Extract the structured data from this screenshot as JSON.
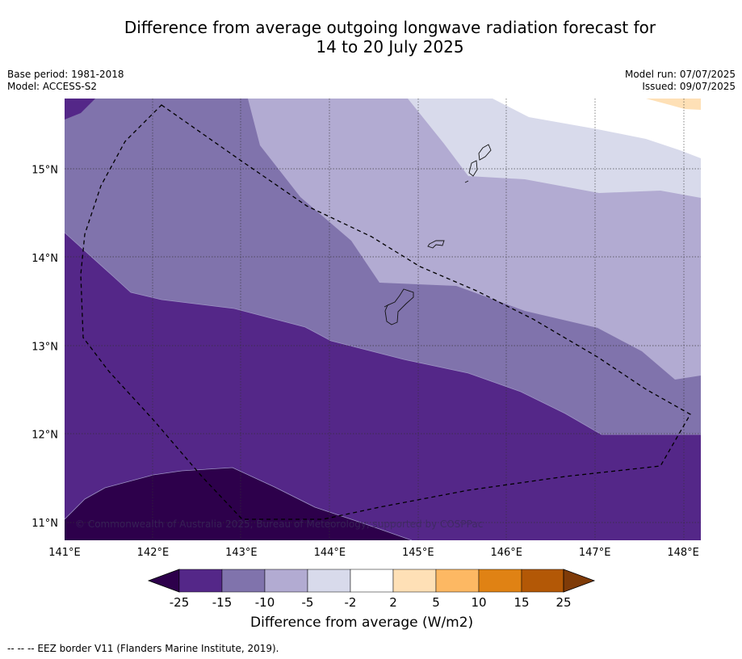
{
  "title": {
    "line1": "Difference from average outgoing longwave radiation forecast for",
    "line2": "14 to 20 July 2025"
  },
  "meta_left": {
    "base_period": "Base period: 1981-2018",
    "model": "Model: ACCESS-S2"
  },
  "meta_right": {
    "model_run": "Model run: 07/07/2025",
    "issued": "Issued: 09/07/2025"
  },
  "map": {
    "lon_labels": [
      "141°E",
      "142°E",
      "143°E",
      "144°E",
      "145°E",
      "146°E",
      "147°E",
      "148°E"
    ],
    "lat_labels": [
      "15°N",
      "14°N",
      "13°N",
      "12°N",
      "11°N"
    ],
    "lon_range": [
      141,
      148.2
    ],
    "lat_range": [
      10.8,
      15.8
    ],
    "copyright": "© Commonwealth of Australia 2025, Bureau of Meteorology, supported by COSPPac"
  },
  "colorbar": {
    "title": "Difference from average (W/m2)",
    "tick_labels": [
      "-25",
      "-15",
      "-10",
      "-5",
      "-2",
      "2",
      "5",
      "10",
      "15",
      "25"
    ],
    "colors": {
      "under": "#2d004b",
      "b1": "#542788",
      "b2": "#8073ac",
      "b3": "#b2abd2",
      "b4": "#d8daeb",
      "b5": "#ffffff",
      "b6": "#fee0b6",
      "b7": "#fdb863",
      "b8": "#e08214",
      "b9": "#b35806",
      "over": "#7f3b08"
    }
  },
  "footnote": "--  --  -- EEZ border V11 (Flanders Marine Institute, 2019)."
}
